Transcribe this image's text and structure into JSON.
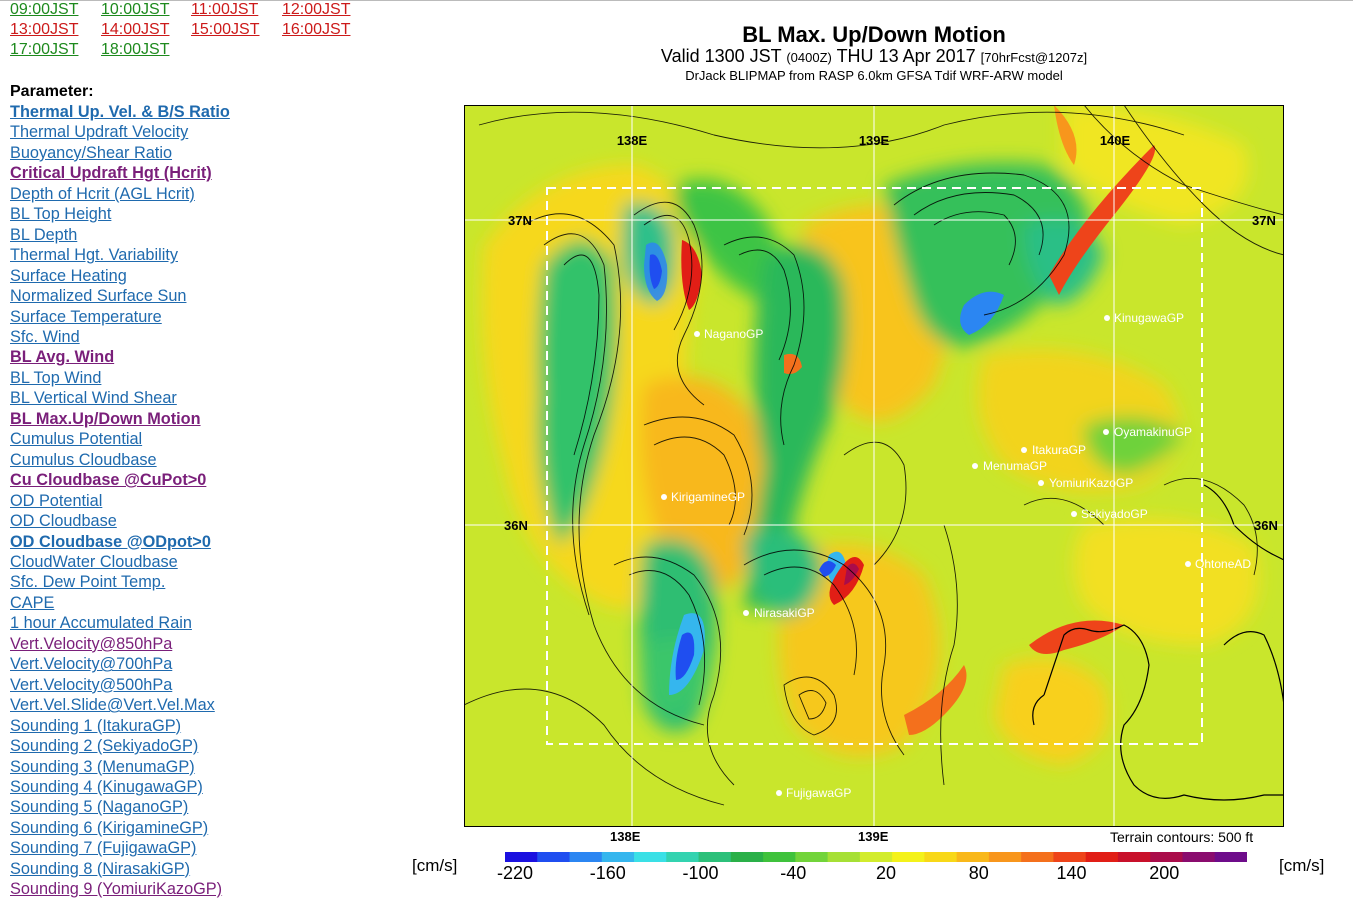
{
  "time_links": [
    {
      "label": "09:00JST",
      "color": "green"
    },
    {
      "label": "10:00JST",
      "color": "green"
    },
    {
      "label": "11:00JST",
      "color": "red"
    },
    {
      "label": "12:00JST",
      "color": "red"
    },
    {
      "label": "13:00JST",
      "color": "red"
    },
    {
      "label": "14:00JST",
      "color": "red"
    },
    {
      "label": "15:00JST",
      "color": "red"
    },
    {
      "label": "16:00JST",
      "color": "red"
    },
    {
      "label": "17:00JST",
      "color": "green"
    },
    {
      "label": "18:00JST",
      "color": "green"
    }
  ],
  "parameter_heading": "Parameter:",
  "parameters": [
    {
      "label": "Thermal Up. Vel. & B/S Ratio",
      "bold": true,
      "visited": false
    },
    {
      "label": "Thermal Updraft Velocity",
      "bold": false,
      "visited": false
    },
    {
      "label": "Buoyancy/Shear Ratio",
      "bold": false,
      "visited": false
    },
    {
      "label": "Critical Updraft Hgt (Hcrit)",
      "bold": true,
      "visited": true
    },
    {
      "label": "Depth of Hcrit (AGL Hcrit)",
      "bold": false,
      "visited": false
    },
    {
      "label": "BL Top Height",
      "bold": false,
      "visited": false
    },
    {
      "label": "BL Depth",
      "bold": false,
      "visited": false
    },
    {
      "label": "Thermal Hgt. Variability",
      "bold": false,
      "visited": false
    },
    {
      "label": "Surface Heating",
      "bold": false,
      "visited": false
    },
    {
      "label": "Normalized Surface Sun",
      "bold": false,
      "visited": false
    },
    {
      "label": "Surface Temperature",
      "bold": false,
      "visited": false
    },
    {
      "label": "Sfc. Wind",
      "bold": false,
      "visited": false
    },
    {
      "label": "BL Avg. Wind",
      "bold": true,
      "visited": true
    },
    {
      "label": "BL Top Wind",
      "bold": false,
      "visited": false
    },
    {
      "label": "BL Vertical Wind Shear",
      "bold": false,
      "visited": false
    },
    {
      "label": "BL Max.Up/Down Motion",
      "bold": true,
      "visited": true
    },
    {
      "label": "Cumulus Potential",
      "bold": false,
      "visited": false
    },
    {
      "label": "Cumulus Cloudbase",
      "bold": false,
      "visited": false
    },
    {
      "label": "Cu Cloudbase @CuPot>0",
      "bold": true,
      "visited": true
    },
    {
      "label": "OD Potential",
      "bold": false,
      "visited": false
    },
    {
      "label": "OD Cloudbase",
      "bold": false,
      "visited": false
    },
    {
      "label": "OD Cloudbase @ODpot>0",
      "bold": true,
      "visited": false
    },
    {
      "label": "CloudWater Cloudbase",
      "bold": false,
      "visited": false
    },
    {
      "label": "Sfc. Dew Point Temp.",
      "bold": false,
      "visited": false
    },
    {
      "label": "CAPE",
      "bold": false,
      "visited": false
    },
    {
      "label": "1 hour Accumulated Rain",
      "bold": false,
      "visited": false
    },
    {
      "label": "Vert.Velocity@850hPa",
      "bold": false,
      "visited": true
    },
    {
      "label": "Vert.Velocity@700hPa",
      "bold": false,
      "visited": false
    },
    {
      "label": "Vert.Velocity@500hPa",
      "bold": false,
      "visited": false
    },
    {
      "label": "Vert.Vel.Slide@Vert.Vel.Max",
      "bold": false,
      "visited": false
    },
    {
      "label": "Sounding 1 (ItakuraGP)",
      "bold": false,
      "visited": false
    },
    {
      "label": "Sounding 2 (SekiyadoGP)",
      "bold": false,
      "visited": false
    },
    {
      "label": "Sounding 3 (MenumaGP)",
      "bold": false,
      "visited": false
    },
    {
      "label": "Sounding 4 (KinugawaGP)",
      "bold": false,
      "visited": false
    },
    {
      "label": "Sounding 5 (NaganoGP)",
      "bold": false,
      "visited": false
    },
    {
      "label": "Sounding 6 (KirigamineGP)",
      "bold": false,
      "visited": false
    },
    {
      "label": "Sounding 7 (FujigawaGP)",
      "bold": false,
      "visited": false
    },
    {
      "label": "Sounding 8 (NirasakiGP)",
      "bold": false,
      "visited": false
    },
    {
      "label": "Sounding 9 (YomiuriKazoGP)",
      "bold": false,
      "visited": true
    }
  ],
  "map": {
    "title": "BL Max. Up/Down Motion",
    "valid_main": "Valid 1300 JST",
    "valid_utc": "(0400Z)",
    "valid_date": "THU 13 Apr 2017",
    "valid_fcst": "[70hrFcst@1207z]",
    "subtitle": "DrJack BLIPMAP from RASP 6.0km GFSA Tdif WRF-ARW model",
    "lon_labels_top": [
      "138E",
      "139E",
      "140E"
    ],
    "lon_labels_bottom": [
      "138E",
      "139E"
    ],
    "lat_labels": [
      "37N",
      "36N"
    ],
    "sites": [
      {
        "name": "NaganoGP"
      },
      {
        "name": "KinugawaGP"
      },
      {
        "name": "OyamakinuGP"
      },
      {
        "name": "ItakuraGP"
      },
      {
        "name": "MenumaGP"
      },
      {
        "name": "YomiuriKazoGP"
      },
      {
        "name": "KirigamineGP"
      },
      {
        "name": "SekiyadoGP"
      },
      {
        "name": "OhtoneAD"
      },
      {
        "name": "NirasakiGP"
      },
      {
        "name": "FujigawaGP"
      }
    ],
    "terrain_note": "Terrain contours: 500 ft"
  },
  "colorbar": {
    "unit_left": "[cm/s]",
    "unit_right": "[cm/s]",
    "tick_labels": [
      "-220",
      "-160",
      "-100",
      "-40",
      "20",
      "80",
      "140",
      "200"
    ],
    "colors": [
      "#1a10e0",
      "#1f4ef0",
      "#2b86f2",
      "#35b6ee",
      "#3ae0e6",
      "#33d3b0",
      "#2cc07a",
      "#2ab048",
      "#3fc23c",
      "#72d43a",
      "#a6e035",
      "#d2ec2c",
      "#f4f21a",
      "#f8d818",
      "#f9b81a",
      "#f8961c",
      "#f4701c",
      "#ee441a",
      "#e11e16",
      "#c8102a",
      "#aa0c4a",
      "#8a0c6e",
      "#6e0c8a"
    ]
  }
}
